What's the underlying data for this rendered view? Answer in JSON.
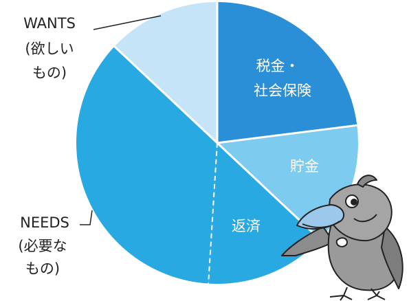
{
  "chart_data": {
    "type": "pie",
    "categories": [
      [
        "税金・",
        "社会保険"
      ],
      [
        "貯金"
      ],
      [
        "返済"
      ],
      [
        "NEEDS",
        "(必要な",
        "もの)"
      ],
      [
        "WANTS",
        "(欲しい",
        "もの)"
      ]
    ],
    "values": [
      23,
      14,
      14,
      36,
      13
    ],
    "colors": [
      "#2a8fd6",
      "#7ecbf0",
      "#29a9e1",
      "#29a9e1",
      "#c6e4f7"
    ]
  }
}
